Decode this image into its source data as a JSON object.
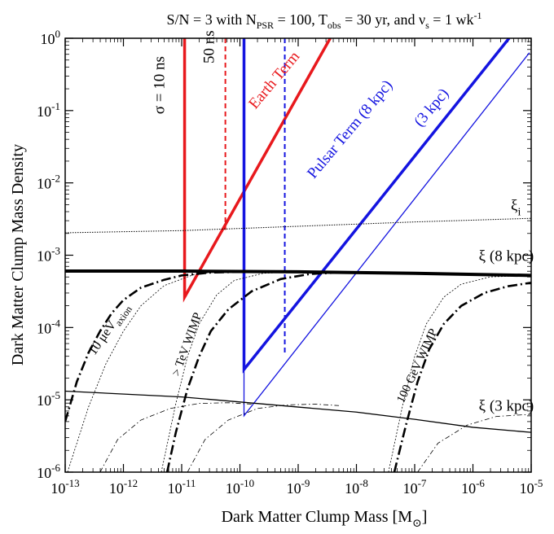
{
  "chart_data": {
    "type": "line",
    "title": {
      "pre": "S/N = 3 with N",
      "sub1": "PSR",
      "mid1": " = 100, T",
      "sub2": "obs",
      "mid2": " = 30 yr, and ν",
      "sub3": "s",
      "mid3": " = 1 wk",
      "sup3": "-1"
    },
    "xlabel": {
      "text": "Dark Matter Clump Mass [M",
      "sub": "⊙",
      "end": "]"
    },
    "ylabel": "Dark Matter Clump Mass Density",
    "xscale": "log",
    "yscale": "log",
    "xlim": [
      -13,
      -5
    ],
    "ylim": [
      -6,
      0
    ],
    "x_ticks": [
      {
        "exp": -13,
        "base": "10",
        "sup": "-13"
      },
      {
        "exp": -12,
        "base": "10",
        "sup": "-12"
      },
      {
        "exp": -11,
        "base": "10",
        "sup": "-11"
      },
      {
        "exp": -10,
        "base": "10",
        "sup": "-10"
      },
      {
        "exp": -9,
        "base": "10",
        "sup": "-9"
      },
      {
        "exp": -8,
        "base": "10",
        "sup": "-8"
      },
      {
        "exp": -7,
        "base": "10",
        "sup": "-7"
      },
      {
        "exp": -6,
        "base": "10",
        "sup": "-6"
      },
      {
        "exp": -5,
        "base": "10",
        "sup": "-5"
      }
    ],
    "y_ticks": [
      {
        "exp": 0,
        "base": "10",
        "sup": "0"
      },
      {
        "exp": -1,
        "base": "10",
        "sup": "-1"
      },
      {
        "exp": -2,
        "base": "10",
        "sup": "-2"
      },
      {
        "exp": -3,
        "base": "10",
        "sup": "-3"
      },
      {
        "exp": -4,
        "base": "10",
        "sup": "-4"
      },
      {
        "exp": -5,
        "base": "10",
        "sup": "-5"
      },
      {
        "exp": -6,
        "base": "10",
        "sup": "-6"
      }
    ],
    "colors": {
      "earth": "#e8191d",
      "pulsar": "#1414e0",
      "black": "#000000"
    },
    "series": [
      {
        "key": "earth_10ns",
        "color": "earth",
        "width": 3.5,
        "dash": "",
        "points": [
          [
            -10.95,
            0
          ],
          [
            -10.95,
            -3.58
          ],
          [
            -8.45,
            0
          ]
        ]
      },
      {
        "key": "earth_50ns",
        "color": "earth",
        "width": 2,
        "dash": "6,4",
        "points": [
          [
            -10.25,
            0
          ],
          [
            -10.25,
            -2.65
          ]
        ]
      },
      {
        "key": "pulsar_8kpc",
        "color": "pulsar",
        "width": 3.5,
        "dash": "",
        "points": [
          [
            -9.93,
            0
          ],
          [
            -9.93,
            -4.58
          ],
          [
            -5.38,
            0
          ]
        ]
      },
      {
        "key": "pulsar_8kpc_50ns",
        "color": "pulsar",
        "width": 2,
        "dash": "6,4",
        "points": [
          [
            -9.23,
            0
          ],
          [
            -9.23,
            -4.35
          ]
        ]
      },
      {
        "key": "pulsar_3kpc",
        "color": "pulsar",
        "width": 1.3,
        "dash": "",
        "points": [
          [
            -9.93,
            -4.58
          ],
          [
            -9.93,
            -5.22
          ],
          [
            -5.03,
            -0.2
          ]
        ]
      },
      {
        "key": "xi_i",
        "color": "black",
        "width": 1,
        "dash": "1.5,1.5",
        "points": [
          [
            -13,
            -2.69
          ],
          [
            -11,
            -2.66
          ],
          [
            -9,
            -2.6
          ],
          [
            -7,
            -2.54
          ],
          [
            -5,
            -2.49
          ]
        ]
      },
      {
        "key": "xi_8kpc",
        "color": "black",
        "width": 4,
        "dash": "",
        "points": [
          [
            -13,
            -3.22
          ],
          [
            -11,
            -3.22
          ],
          [
            -9,
            -3.23
          ],
          [
            -7,
            -3.25
          ],
          [
            -5,
            -3.28
          ]
        ]
      },
      {
        "key": "xi_3kpc",
        "color": "black",
        "width": 1.3,
        "dash": "",
        "points": [
          [
            -13,
            -4.88
          ],
          [
            -11,
            -4.96
          ],
          [
            -10,
            -5.03
          ],
          [
            -9,
            -5.1
          ],
          [
            -8,
            -5.17
          ],
          [
            -7,
            -5.27
          ],
          [
            -6,
            -5.38
          ],
          [
            -5,
            -5.45
          ]
        ]
      },
      {
        "key": "axion_thin_dot",
        "color": "black",
        "width": 0.8,
        "dash": "2,2",
        "points": [
          [
            -12.96,
            -6
          ],
          [
            -12.6,
            -5.1
          ],
          [
            -12.3,
            -4.5
          ],
          [
            -12,
            -4.05
          ],
          [
            -11.7,
            -3.7
          ],
          [
            -11.3,
            -3.42
          ],
          [
            -10.8,
            -3.27
          ],
          [
            -10.3,
            -3.22
          ],
          [
            -10,
            -3.22
          ]
        ]
      },
      {
        "key": "axion_thick",
        "color": "black",
        "width": 2.6,
        "dash": "12,4,2,4",
        "points": [
          [
            -13,
            -5.3
          ],
          [
            -12.8,
            -4.75
          ],
          [
            -12.6,
            -4.35
          ],
          [
            -12.4,
            -4.05
          ],
          [
            -12.2,
            -3.8
          ],
          [
            -12,
            -3.62
          ],
          [
            -11.7,
            -3.45
          ],
          [
            -11.3,
            -3.34
          ],
          [
            -11,
            -3.28
          ],
          [
            -10.5,
            -3.24
          ],
          [
            -10,
            -3.23
          ]
        ]
      },
      {
        "key": "axion_thin_dashdot",
        "color": "black",
        "width": 0.8,
        "dash": "6,3,1.5,3",
        "points": [
          [
            -12.4,
            -6
          ],
          [
            -12.1,
            -5.55
          ],
          [
            -11.7,
            -5.28
          ],
          [
            -11.2,
            -5.12
          ],
          [
            -10.7,
            -5.05
          ],
          [
            -10.2,
            -5.04
          ],
          [
            -9.8,
            -5.06
          ]
        ]
      },
      {
        "key": "tev_thin_dot",
        "color": "black",
        "width": 0.8,
        "dash": "2,2",
        "points": [
          [
            -11.35,
            -6
          ],
          [
            -11.1,
            -5.05
          ],
          [
            -10.9,
            -4.4
          ],
          [
            -10.7,
            -3.95
          ],
          [
            -10.4,
            -3.55
          ],
          [
            -10.1,
            -3.35
          ],
          [
            -9.6,
            -3.25
          ],
          [
            -9,
            -3.23
          ],
          [
            -8.5,
            -3.23
          ]
        ]
      },
      {
        "key": "tev_thick",
        "color": "black",
        "width": 2.6,
        "dash": "12,4,2,4",
        "points": [
          [
            -11.25,
            -6
          ],
          [
            -11.1,
            -5.45
          ],
          [
            -10.9,
            -4.85
          ],
          [
            -10.7,
            -4.4
          ],
          [
            -10.5,
            -4.05
          ],
          [
            -10.2,
            -3.75
          ],
          [
            -9.8,
            -3.5
          ],
          [
            -9.3,
            -3.33
          ],
          [
            -8.8,
            -3.26
          ],
          [
            -8.3,
            -3.24
          ],
          [
            -8,
            -3.24
          ]
        ]
      },
      {
        "key": "tev_thin_dashdot",
        "color": "black",
        "width": 0.8,
        "dash": "6,3,1.5,3",
        "points": [
          [
            -10.9,
            -6
          ],
          [
            -10.6,
            -5.55
          ],
          [
            -10.2,
            -5.28
          ],
          [
            -9.7,
            -5.12
          ],
          [
            -9.2,
            -5.07
          ],
          [
            -8.7,
            -5.06
          ],
          [
            -8.3,
            -5.08
          ]
        ]
      },
      {
        "key": "gev_thin_dot",
        "color": "black",
        "width": 0.8,
        "dash": "2,2",
        "points": [
          [
            -7.45,
            -6
          ],
          [
            -7.2,
            -5.05
          ],
          [
            -7,
            -4.4
          ],
          [
            -6.8,
            -3.95
          ],
          [
            -6.5,
            -3.58
          ],
          [
            -6.2,
            -3.4
          ],
          [
            -5.7,
            -3.3
          ],
          [
            -5,
            -3.28
          ]
        ]
      },
      {
        "key": "gev_thick",
        "color": "black",
        "width": 2.6,
        "dash": "12,4,2,4",
        "points": [
          [
            -7.35,
            -6
          ],
          [
            -7.15,
            -5.35
          ],
          [
            -6.95,
            -4.75
          ],
          [
            -6.75,
            -4.3
          ],
          [
            -6.5,
            -3.95
          ],
          [
            -6.2,
            -3.7
          ],
          [
            -5.8,
            -3.52
          ],
          [
            -5.4,
            -3.43
          ],
          [
            -5,
            -3.38
          ]
        ]
      },
      {
        "key": "gev_thin_dashdot",
        "color": "black",
        "width": 0.8,
        "dash": "6,3,1.5,3",
        "points": [
          [
            -6.95,
            -6
          ],
          [
            -6.6,
            -5.6
          ],
          [
            -6.1,
            -5.35
          ],
          [
            -5.6,
            -5.23
          ],
          [
            -5,
            -5.2
          ]
        ]
      }
    ],
    "annotations": [
      {
        "key": "sigma10",
        "text": "σ = 10 ns",
        "x": -11.3,
        "y": -0.65,
        "rot": -90,
        "color": "black",
        "size": 19
      },
      {
        "key": "ns50",
        "text": "50 ns",
        "x": -10.45,
        "y": -0.12,
        "rot": -90,
        "color": "black",
        "size": 19
      },
      {
        "key": "earth",
        "text": "Earth Term",
        "x": -9.35,
        "y": -0.62,
        "rot": -50,
        "color": "earth",
        "size": 19
      },
      {
        "key": "pulsar8",
        "text": "Pulsar Term (8 kpc)",
        "x": -8.05,
        "y": -1.3,
        "rot": -50,
        "color": "pulsar",
        "size": 19
      },
      {
        "key": "pulsar3",
        "text": "(3 kpc)",
        "x": -6.65,
        "y": -1.0,
        "rot": -50,
        "color": "pulsar",
        "size": 19
      },
      {
        "key": "axion",
        "text": "10 μeV",
        "sub": "axion",
        "x": -12.2,
        "y": -4.05,
        "rot": -55,
        "color": "black",
        "size": 16
      },
      {
        "key": "tev",
        "text": "> TeV WIMP",
        "x": -10.85,
        "y": -4.25,
        "rot": -70,
        "color": "black",
        "size": 15
      },
      {
        "key": "gev",
        "text": "100 GeV WIMP",
        "x": -6.9,
        "y": -4.55,
        "rot": -65,
        "color": "black",
        "size": 15
      }
    ],
    "curve_labels": [
      {
        "key": "xii",
        "text": "ξ",
        "sub": "i",
        "x": -5.35,
        "y": -2.38
      },
      {
        "key": "xi8",
        "text": "ξ (8 kpc)",
        "x": -5.9,
        "y": -3.08
      },
      {
        "key": "xi3",
        "text": "ξ (3 kpc)",
        "x": -5.9,
        "y": -5.15
      }
    ]
  }
}
